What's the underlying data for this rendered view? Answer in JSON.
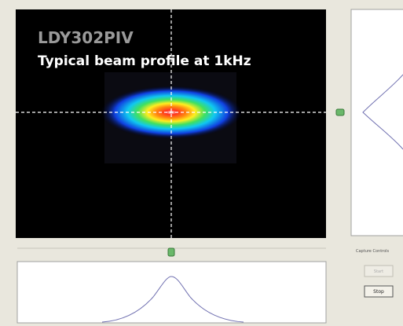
{
  "image": {
    "title": "LDY302PIV",
    "subtitle": "Typical beam profile at 1kHz"
  },
  "controls": {
    "label": "Capture Controls",
    "start": "Start",
    "stop": "Stop"
  }
}
